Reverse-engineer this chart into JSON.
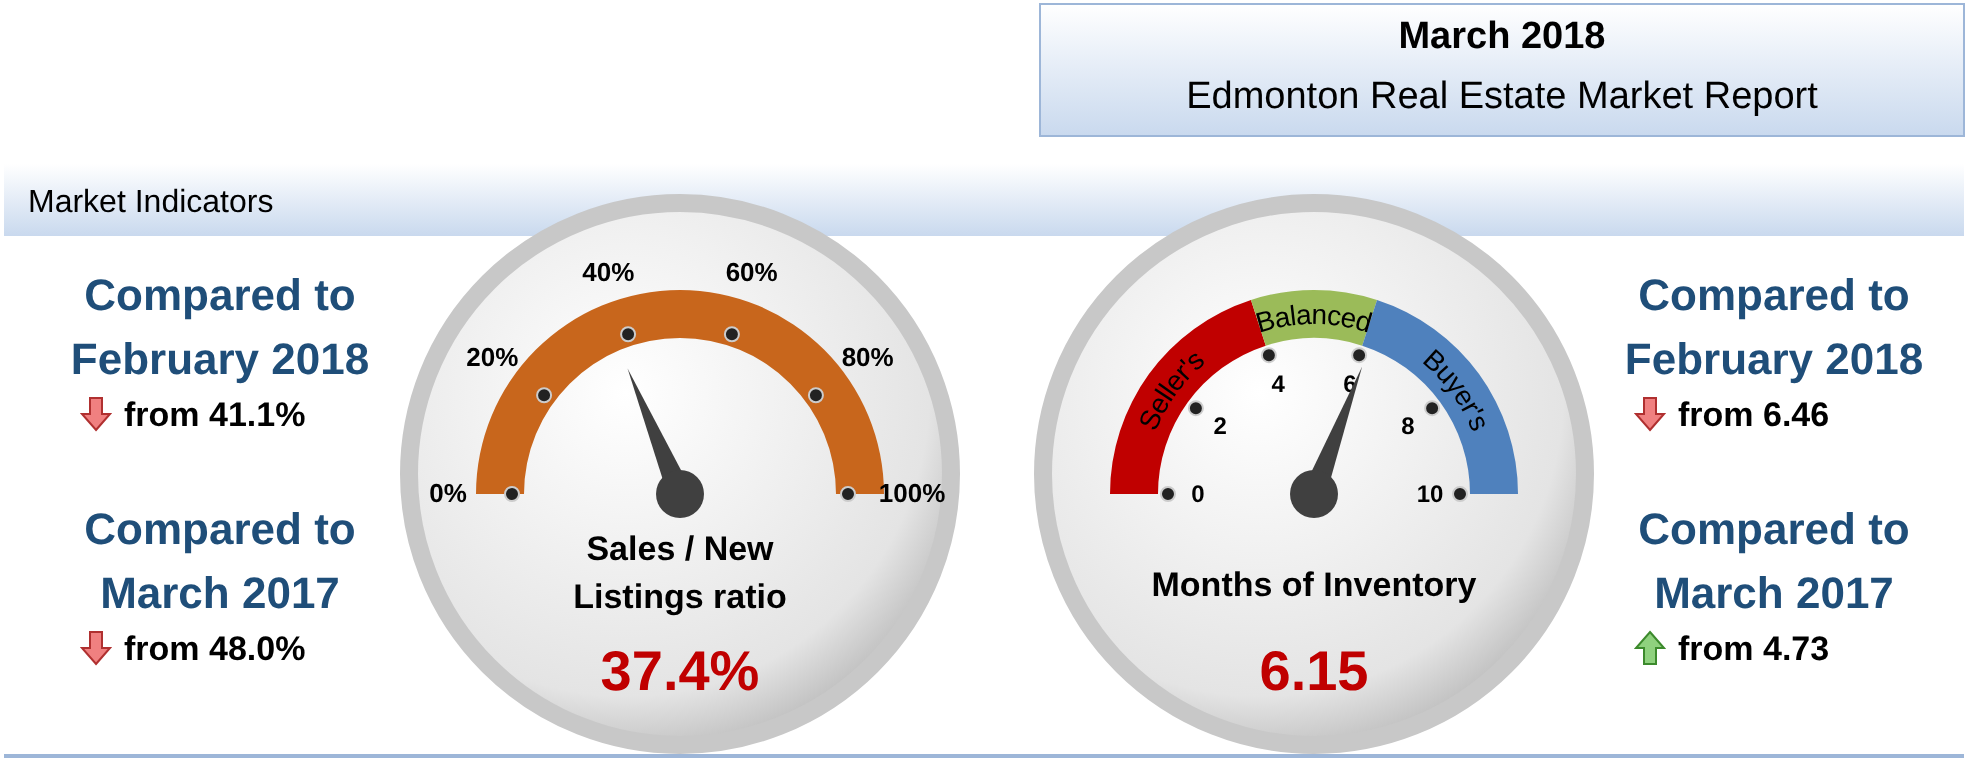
{
  "chart_data": [
    {
      "type": "other",
      "title": "March 2018",
      "subtitle": "Edmonton Real Estate Market Report",
      "annotations": [
        "Market Indicators"
      ]
    },
    {
      "type": "pie",
      "xlabel": "Sales / New Listings ratio",
      "categories": [
        null
      ],
      "values": [
        100
      ],
      "colors": [
        "#c8661c"
      ],
      "annotations": [
        "Compared to February 2018",
        "from 41.1%",
        "Compared to March 2017",
        "from 48.0%",
        "37.4%",
        "0%",
        "20%",
        "40%",
        "60%",
        "80%",
        "100%"
      ]
    },
    {
      "type": "donut",
      "xlabel": "Months of Inventory",
      "categories": [
        "Seller's",
        "Balanced",
        "Buyer's"
      ],
      "values": [
        40,
        20,
        40
      ],
      "colors": [
        "#c00000",
        "#9bbb59",
        "#4f81bd"
      ],
      "needle": "Buyer's",
      "annotations": [
        "Compared to February 2018",
        "from 6.46",
        "Compared to March 2017",
        "from 4.73",
        "6.15",
        "0",
        "2",
        "4",
        "6",
        "8",
        "10"
      ]
    }
  ]
}
